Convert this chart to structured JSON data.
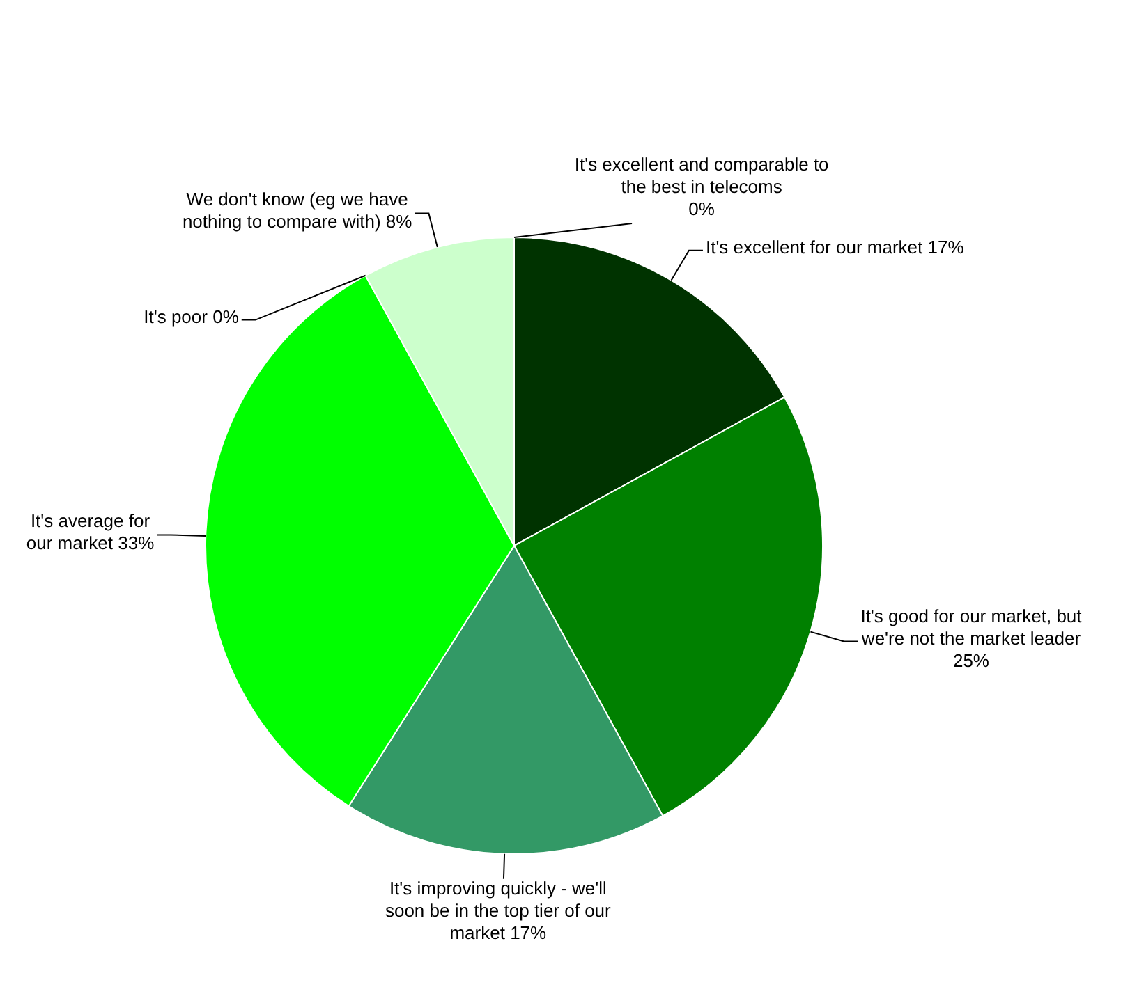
{
  "chart_data": {
    "type": "pie",
    "categories": [
      "It's excellent and comparable to the best in telecoms",
      "It's excellent for our market",
      "It's good for our market, but we're not the market leader",
      "It's improving quickly - we'll soon be in the top tier of our market",
      "It's average for our market",
      "It's poor",
      "We don't know (eg we have nothing to compare with)"
    ],
    "values": [
      0,
      17,
      25,
      17,
      33,
      0,
      8
    ],
    "value_labels": [
      "0%",
      "17%",
      "25%",
      "17%",
      "33%",
      "0%",
      "8%"
    ],
    "colors": [
      "#006600",
      "#003300",
      "#008000",
      "#339966",
      "#00ff00",
      "#99ff99",
      "#ccffcc"
    ],
    "legend": false
  }
}
